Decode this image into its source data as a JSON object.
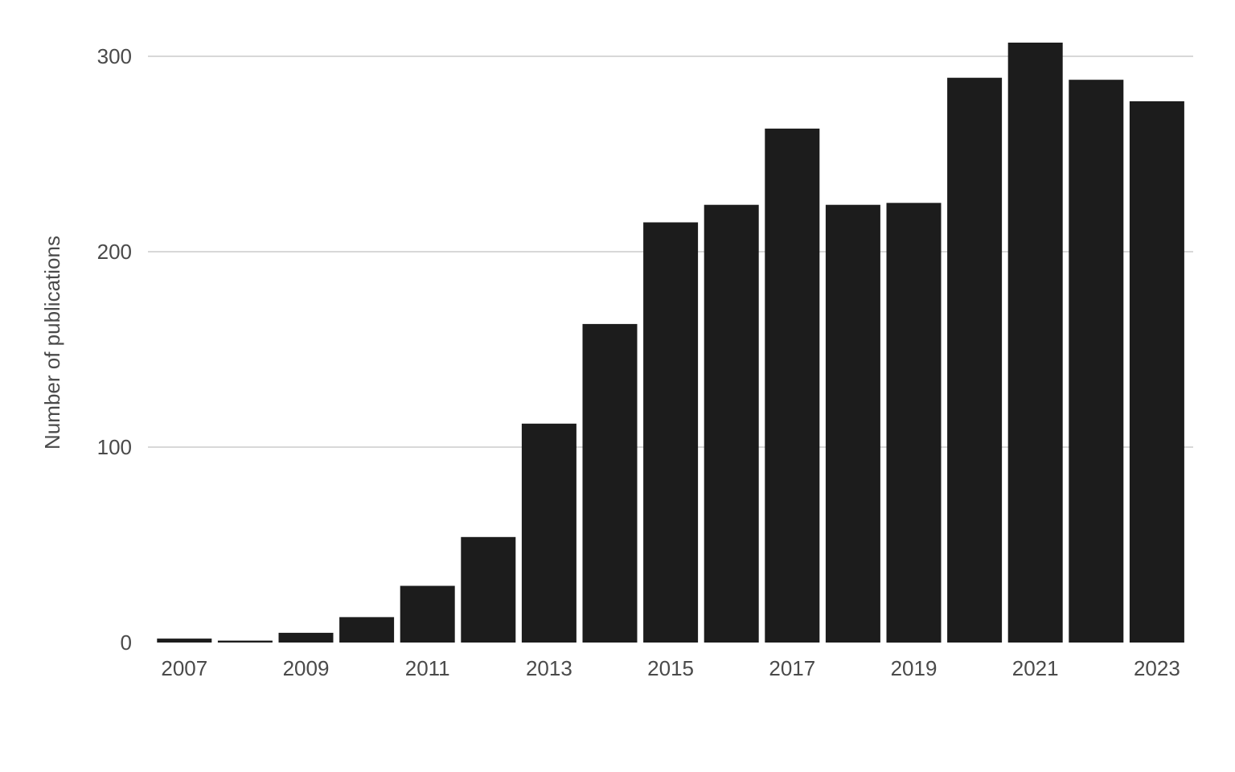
{
  "chart_data": {
    "type": "bar",
    "title": "",
    "xlabel": "",
    "ylabel": "Number of publications",
    "categories": [
      "2007",
      "2008",
      "2009",
      "2010",
      "2011",
      "2012",
      "2013",
      "2014",
      "2015",
      "2016",
      "2017",
      "2018",
      "2019",
      "2020",
      "2021",
      "2022",
      "2023"
    ],
    "values": [
      2,
      1,
      5,
      13,
      29,
      54,
      112,
      163,
      215,
      224,
      263,
      224,
      225,
      289,
      307,
      288,
      277
    ],
    "x_tick_labels": [
      "2007",
      "2009",
      "2011",
      "2013",
      "2015",
      "2017",
      "2019",
      "2021",
      "2023"
    ],
    "y_ticks": [
      0,
      100,
      200,
      300
    ],
    "ylim": [
      0,
      307
    ],
    "grid": true,
    "legend": "none",
    "bar_color": "#1c1c1c",
    "grid_color": "#cccccc",
    "text_color": "#4a4a4a"
  }
}
